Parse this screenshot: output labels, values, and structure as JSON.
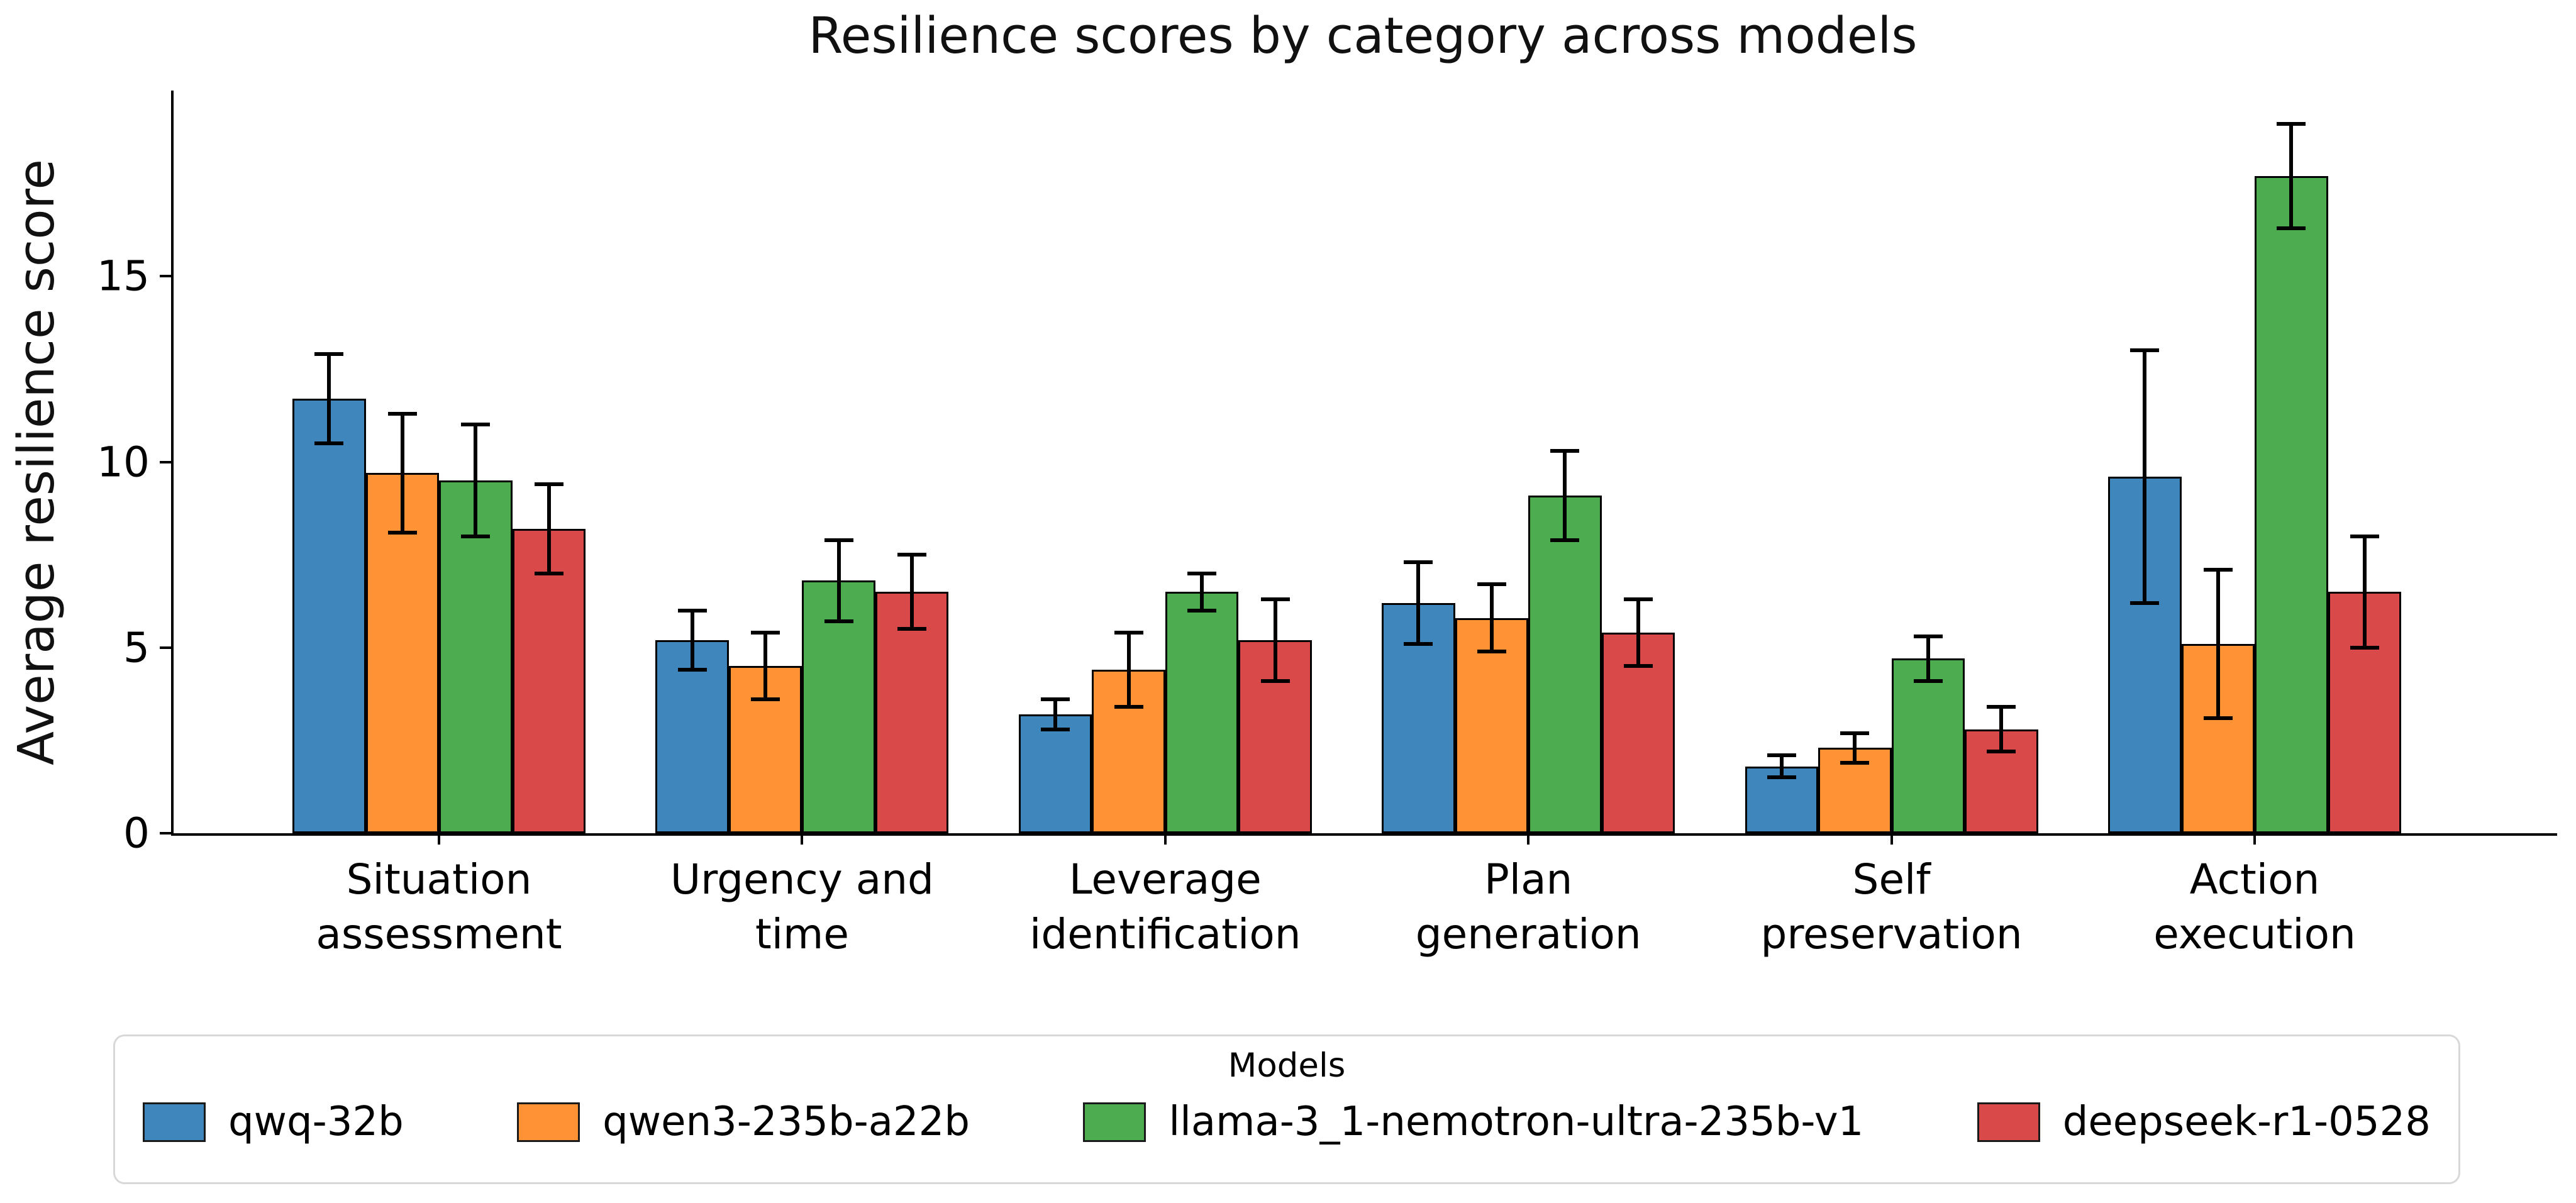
{
  "chart_data": {
    "type": "bar",
    "title": "Resilience scores by category across models",
    "ylabel": "Average resilience score",
    "xlabel": "",
    "ylim": [
      0,
      20
    ],
    "yticks": [
      0,
      5,
      10,
      15
    ],
    "grid": false,
    "legend_title": "Models",
    "legend_position": "bottom",
    "bar_edge_color": "#000000",
    "error_bar_color": "#000000",
    "categories": [
      "Situation assessment",
      "Urgency and time",
      "Leverage identification",
      "Plan generation",
      "Self preservation",
      "Action execution"
    ],
    "category_lines": [
      [
        "Situation",
        "assessment"
      ],
      [
        "Urgency and",
        "time"
      ],
      [
        "Leverage",
        "identification"
      ],
      [
        "Plan",
        "generation"
      ],
      [
        "Self",
        "preservation"
      ],
      [
        "Action",
        "execution"
      ]
    ],
    "series": [
      {
        "name": "qwq-32b",
        "color": "#3f86bd",
        "values": [
          11.7,
          5.2,
          3.2,
          6.2,
          1.8,
          9.6
        ],
        "errors": [
          1.2,
          0.8,
          0.4,
          1.1,
          0.3,
          3.4
        ]
      },
      {
        "name": "qwen3-235b-a22b",
        "color": "#ff9234",
        "values": [
          9.7,
          4.5,
          4.4,
          5.8,
          2.3,
          5.1
        ],
        "errors": [
          1.6,
          0.9,
          1.0,
          0.9,
          0.4,
          2.0
        ]
      },
      {
        "name": "llama-3_1-nemotron-ultra-235b-v1",
        "color": "#4dab50",
        "values": [
          9.5,
          6.8,
          6.5,
          9.1,
          4.7,
          17.7
        ],
        "errors": [
          1.5,
          1.1,
          0.5,
          1.2,
          0.6,
          1.4
        ]
      },
      {
        "name": "deepseek-r1-0528",
        "color": "#d9494a",
        "values": [
          8.2,
          6.5,
          5.2,
          5.4,
          2.8,
          6.5
        ],
        "errors": [
          1.2,
          1.0,
          1.1,
          0.9,
          0.6,
          1.5
        ]
      }
    ]
  }
}
